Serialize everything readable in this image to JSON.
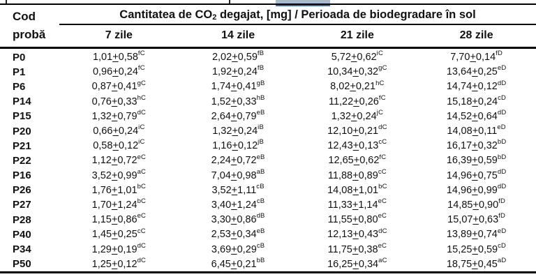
{
  "colors": {
    "selection_bar": "#a8b9cc",
    "selection_bar_edge": "#44689d",
    "rule": "#000000",
    "text": "#111111"
  },
  "table": {
    "code_header": {
      "line1": "Cod",
      "line2": "probă"
    },
    "title": {
      "prefix": "Cantitatea de CO",
      "subscript": "2",
      "suffix": " degajat, [mg] / Perioada de biodegradare în sol"
    },
    "period_headers": [
      "7 zile",
      "14 zile",
      "21 zile",
      "28 zile"
    ],
    "plus_minus": "+",
    "rows": [
      {
        "code": "P0",
        "cells": [
          {
            "value": "1,01",
            "sd": "0,58",
            "sup": "fC"
          },
          {
            "value": "2,02",
            "sd": "0,59",
            "sup": "fB"
          },
          {
            "value": "5,72",
            "sd": "0,62",
            "sup": "iC"
          },
          {
            "value": "7,70",
            "sd": "0,14",
            "sup": "fD"
          }
        ]
      },
      {
        "code": "P1",
        "cells": [
          {
            "value": "0,96",
            "sd": "0,24",
            "sup": "fC"
          },
          {
            "value": "1,92",
            "sd": "0,24",
            "sup": "fB"
          },
          {
            "value": "10,34",
            "sd": "0,32",
            "sup": "gC"
          },
          {
            "value": "13,64",
            "sd": "0,25",
            "sup": "eD"
          }
        ]
      },
      {
        "code": "P6",
        "cells": [
          {
            "value": "0,87",
            "sd": "0,41",
            "sup": "gC"
          },
          {
            "value": "1,74",
            "sd": "0,41",
            "sup": "gB"
          },
          {
            "value": "8,02",
            "sd": "0,21",
            "sup": "hC"
          },
          {
            "value": "14,74",
            "sd": "0,12",
            "sup": "dD"
          }
        ]
      },
      {
        "code": "P14",
        "cells": [
          {
            "value": "0,76",
            "sd": "0,33",
            "sup": "hC"
          },
          {
            "value": "1,52",
            "sd": "0,33",
            "sup": "hB"
          },
          {
            "value": "11,22",
            "sd": "0,26",
            "sup": "fC"
          },
          {
            "value": "15,18",
            "sd": "0,24",
            "sup": "cD"
          }
        ]
      },
      {
        "code": "P15",
        "cells": [
          {
            "value": "1,32",
            "sd": "0,79",
            "sup": "dC"
          },
          {
            "value": "2,64",
            "sd": "0,79",
            "sup": "eB"
          },
          {
            "value": "1,32",
            "sd": "0,24",
            "sup": "jC"
          },
          {
            "value": "14,52",
            "sd": "0,64",
            "sup": "dD"
          }
        ]
      },
      {
        "code": "P20",
        "cells": [
          {
            "value": "0,66",
            "sd": "0,24",
            "sup": "iC"
          },
          {
            "value": "1,32",
            "sd": "0,24",
            "sup": "iB"
          },
          {
            "value": "12,10",
            "sd": "0,21",
            "sup": "dC"
          },
          {
            "value": "14,08",
            "sd": "0,11",
            "sup": "eD"
          }
        ]
      },
      {
        "code": "P21",
        "cells": [
          {
            "value": "0,58",
            "sd": "0,12",
            "sup": "iC"
          },
          {
            "value": "1,16",
            "sd": "0,12",
            "sup": "jB"
          },
          {
            "value": "12,43",
            "sd": "0,13",
            "sup": "cC"
          },
          {
            "value": "16,17",
            "sd": "0,32",
            "sup": "bD"
          }
        ]
      },
      {
        "code": "P22",
        "cells": [
          {
            "value": "1,12",
            "sd": "0,72",
            "sup": "eC"
          },
          {
            "value": "2,24",
            "sd": "0,72",
            "sup": "eB"
          },
          {
            "value": "12,65",
            "sd": "0,62",
            "sup": "fC"
          },
          {
            "value": "16,39",
            "sd": "0,59",
            "sup": "bD"
          }
        ]
      },
      {
        "code": "P16",
        "cells": [
          {
            "value": "3,52",
            "sd": "0,99",
            "sup": "aC"
          },
          {
            "value": "7,04",
            "sd": "0,98",
            "sup": "aB"
          },
          {
            "value": "11,88",
            "sd": "0,89",
            "sup": "cC"
          },
          {
            "value": "14,96",
            "sd": "0,75",
            "sup": "dD"
          }
        ]
      },
      {
        "code": "P26",
        "cells": [
          {
            "value": "1,76",
            "sd": "1,01",
            "sup": "bC"
          },
          {
            "value": "3,52",
            "sd": "1,11",
            "sup": "cB"
          },
          {
            "value": "14,08",
            "sd": "1,01",
            "sup": "bC"
          },
          {
            "value": "14,96",
            "sd": "0,99",
            "sup": "dD"
          }
        ]
      },
      {
        "code": "P27",
        "cells": [
          {
            "value": "1,70",
            "sd": "1,24",
            "sup": "bC"
          },
          {
            "value": "3,40",
            "sd": "1,24",
            "sup": "cB"
          },
          {
            "value": "11,33",
            "sd": "1,14",
            "sup": "eC"
          },
          {
            "value": "14,85",
            "sd": "0,90",
            "sup": "fD"
          }
        ]
      },
      {
        "code": "P28",
        "cells": [
          {
            "value": "1,15",
            "sd": "0,86",
            "sup": "eC"
          },
          {
            "value": "3,30",
            "sd": "0,86",
            "sup": "dB"
          },
          {
            "value": "11,55",
            "sd": "0,80",
            "sup": "eC"
          },
          {
            "value": "15,07",
            "sd": "0,63",
            "sup": "fD"
          }
        ]
      },
      {
        "code": "P40",
        "cells": [
          {
            "value": "1,45",
            "sd": "0,25",
            "sup": "cC"
          },
          {
            "value": "2,53",
            "sd": "0,34",
            "sup": "eB"
          },
          {
            "value": "12,13",
            "sd": "0,43",
            "sup": "dC"
          },
          {
            "value": "13,89",
            "sd": "0,74",
            "sup": "eD"
          }
        ]
      },
      {
        "code": "P34",
        "cells": [
          {
            "value": "1,29",
            "sd": "0,19",
            "sup": "dC"
          },
          {
            "value": "3,69",
            "sd": "0,29",
            "sup": "cB"
          },
          {
            "value": "11,75",
            "sd": "0,38",
            "sup": "eC"
          },
          {
            "value": "15,25",
            "sd": "0,59",
            "sup": "cD"
          }
        ]
      },
      {
        "code": "P50",
        "cells": [
          {
            "value": "1,25",
            "sd": "0,12",
            "sup": "dC"
          },
          {
            "value": "6,45",
            "sd": "0,21",
            "sup": "bB"
          },
          {
            "value": "16,25",
            "sd": "0,34",
            "sup": "aC"
          },
          {
            "value": "18,75",
            "sd": "0,45",
            "sup": "aD"
          }
        ]
      }
    ]
  }
}
